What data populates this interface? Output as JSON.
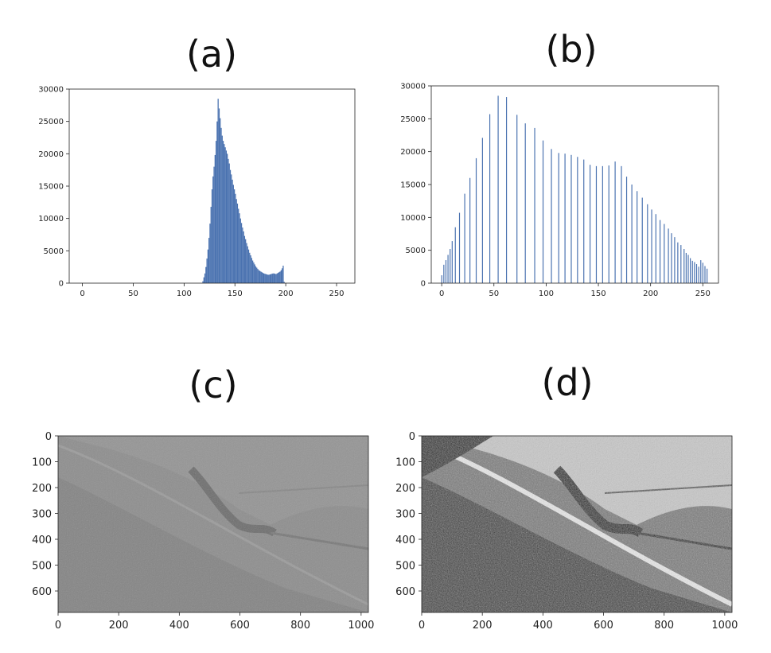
{
  "panels": [
    {
      "label": "(a)"
    },
    {
      "label": "(b)"
    },
    {
      "label": "(c)"
    },
    {
      "label": "(d)"
    }
  ],
  "colors": {
    "bar": "#4a72b0",
    "axis": "#222222"
  },
  "chart_data": [
    {
      "id": "a",
      "type": "bar",
      "title": "",
      "xlabel": "",
      "ylabel": "",
      "xlim": [
        -13,
        268
      ],
      "ylim": [
        0,
        30000
      ],
      "xticks": [
        0,
        50,
        100,
        150,
        200,
        250
      ],
      "yticks": [
        0,
        5000,
        10000,
        15000,
        20000,
        25000,
        30000
      ],
      "grid": false,
      "bin_width": 1,
      "x": [
        118,
        119,
        120,
        121,
        122,
        123,
        124,
        125,
        126,
        127,
        128,
        129,
        130,
        131,
        132,
        133,
        134,
        135,
        136,
        137,
        138,
        139,
        140,
        141,
        142,
        143,
        144,
        145,
        146,
        147,
        148,
        149,
        150,
        151,
        152,
        153,
        154,
        155,
        156,
        157,
        158,
        159,
        160,
        161,
        162,
        163,
        164,
        165,
        166,
        167,
        168,
        169,
        170,
        171,
        172,
        173,
        174,
        175,
        176,
        177,
        178,
        179,
        180,
        181,
        182,
        183,
        184,
        185,
        186,
        187,
        188,
        189,
        190,
        191,
        192,
        193,
        194,
        195,
        196,
        197,
        198
      ],
      "values": [
        300,
        900,
        1500,
        2500,
        3800,
        5200,
        7000,
        9200,
        11800,
        14500,
        16500,
        18000,
        19800,
        22000,
        25000,
        28500,
        27000,
        25500,
        24000,
        22800,
        22000,
        21500,
        21000,
        20500,
        20000,
        19200,
        18500,
        17500,
        16800,
        16000,
        15200,
        14500,
        13800,
        13000,
        12300,
        11500,
        10800,
        10000,
        9300,
        8600,
        8000,
        7300,
        6800,
        6200,
        5700,
        5200,
        4700,
        4300,
        3900,
        3500,
        3200,
        2900,
        2600,
        2400,
        2200,
        2000,
        1900,
        1800,
        1700,
        1600,
        1500,
        1450,
        1400,
        1350,
        1300,
        1300,
        1350,
        1400,
        1450,
        1500,
        1500,
        1450,
        1400,
        1500,
        1600,
        1700,
        1800,
        2000,
        2300,
        2700,
        200
      ]
    },
    {
      "id": "b",
      "type": "bar",
      "title": "",
      "xlabel": "",
      "ylabel": "",
      "xlim": [
        -10,
        265
      ],
      "ylim": [
        0,
        30000
      ],
      "xticks": [
        0,
        50,
        100,
        150,
        200,
        250
      ],
      "yticks": [
        0,
        5000,
        10000,
        15000,
        20000,
        25000,
        30000
      ],
      "grid": false,
      "x": [
        0,
        2,
        4,
        6,
        8,
        10,
        13,
        17,
        22,
        27,
        33,
        39,
        46,
        54,
        62,
        72,
        80,
        89,
        97,
        105,
        112,
        118,
        124,
        130,
        136,
        142,
        148,
        154,
        160,
        166,
        172,
        177,
        182,
        187,
        192,
        197,
        201,
        205,
        209,
        213,
        217,
        220,
        223,
        226,
        229,
        232,
        234,
        236,
        238,
        240,
        242,
        244,
        246,
        248,
        250,
        252,
        254
      ],
      "values": [
        1200,
        2800,
        3500,
        4300,
        5200,
        6400,
        8500,
        10700,
        13600,
        16000,
        19000,
        22100,
        25700,
        28500,
        28300,
        25600,
        24300,
        23600,
        21700,
        20400,
        19800,
        19700,
        19500,
        19200,
        18800,
        18000,
        17800,
        17800,
        17900,
        18500,
        17800,
        16200,
        15000,
        14000,
        13000,
        12000,
        11200,
        10500,
        9600,
        9000,
        8300,
        7600,
        7000,
        6200,
        5800,
        5200,
        4600,
        4300,
        3800,
        3400,
        3200,
        2900,
        2500,
        3500,
        3100,
        2600,
        2200
      ]
    },
    {
      "id": "c",
      "type": "heatmap",
      "title": "",
      "xlim": [
        0,
        1024
      ],
      "ylim": [
        683,
        0
      ],
      "xticks": [
        0,
        200,
        400,
        600,
        800,
        1000
      ],
      "yticks": [
        0,
        100,
        200,
        300,
        400,
        500,
        600
      ],
      "contrast": "low"
    },
    {
      "id": "d",
      "type": "heatmap",
      "title": "",
      "xlim": [
        0,
        1024
      ],
      "ylim": [
        683,
        0
      ],
      "xticks": [
        0,
        200,
        400,
        600,
        800,
        1000
      ],
      "yticks": [
        0,
        100,
        200,
        300,
        400,
        500,
        600
      ],
      "contrast": "high"
    }
  ]
}
